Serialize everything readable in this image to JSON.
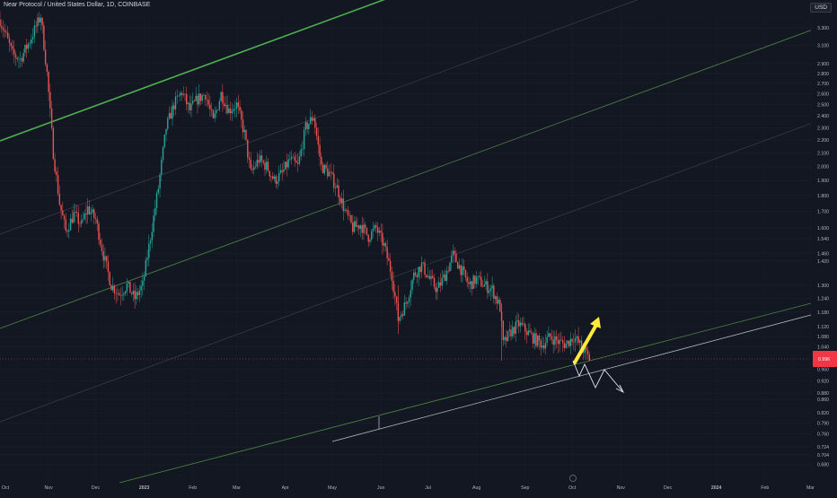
{
  "header": {
    "title": "Near Protocol / United States Dollar, 1D, COINBASE",
    "currency": "USD"
  },
  "colors": {
    "background": "#131722",
    "up": "#26a69a",
    "down": "#ef5350",
    "channel_bright": "#4caf50",
    "channel_dim": "#4a7a45",
    "trendline_white": "#b0b6c2",
    "forecast_arrow": "#ffeb3b",
    "last_price_badge": "#f23645"
  },
  "chart_data": {
    "type": "candlestick",
    "y_axis": {
      "scale": "log",
      "ticks": [
        "3.300",
        "3.100",
        "2.900",
        "2.800",
        "2.700",
        "2.600",
        "2.500",
        "2.400",
        "2.300",
        "2.200",
        "2.100",
        "2.000",
        "1.900",
        "1.800",
        "1.700",
        "1.600",
        "1.540",
        "1.460",
        "1.420",
        "1.300",
        "1.240",
        "1.180",
        "1.120",
        "1.080",
        "1.040",
        "0.960",
        "0.920",
        "0.880",
        "0.860",
        "0.820",
        "0.790",
        "0.760",
        "0.724",
        "0.704",
        "0.680"
      ],
      "last_price": "0.996"
    },
    "x_axis": {
      "ticks": [
        "Oct",
        "Nov",
        "Dec",
        "2023",
        "Feb",
        "Mar",
        "Apr",
        "May",
        "Jun",
        "Jul",
        "Aug",
        "Sep",
        "Oct",
        "Nov",
        "Dec",
        "2024",
        "Feb",
        "Mar"
      ]
    },
    "price_path": [
      [
        "2022-10-01",
        3.4
      ],
      [
        "2022-10-05",
        3.2
      ],
      [
        "2022-10-09",
        3.0
      ],
      [
        "2022-10-14",
        2.95
      ],
      [
        "2022-10-20",
        3.15
      ],
      [
        "2022-10-27",
        3.45
      ],
      [
        "2022-10-31",
        2.8
      ],
      [
        "2022-11-04",
        2.1
      ],
      [
        "2022-11-08",
        1.75
      ],
      [
        "2022-11-12",
        1.58
      ],
      [
        "2022-11-17",
        1.68
      ],
      [
        "2022-11-22",
        1.62
      ],
      [
        "2022-11-26",
        1.72
      ],
      [
        "2022-12-01",
        1.65
      ],
      [
        "2022-12-06",
        1.45
      ],
      [
        "2022-12-11",
        1.3
      ],
      [
        "2022-12-16",
        1.26
      ],
      [
        "2022-12-21",
        1.3
      ],
      [
        "2022-12-26",
        1.24
      ],
      [
        "2022-12-31",
        1.3
      ],
      [
        "2023-01-05",
        1.55
      ],
      [
        "2023-01-10",
        1.85
      ],
      [
        "2023-01-15",
        2.3
      ],
      [
        "2023-01-20",
        2.5
      ],
      [
        "2023-01-25",
        2.62
      ],
      [
        "2023-01-30",
        2.45
      ],
      [
        "2023-02-04",
        2.55
      ],
      [
        "2023-02-09",
        2.6
      ],
      [
        "2023-02-14",
        2.35
      ],
      [
        "2023-02-19",
        2.6
      ],
      [
        "2023-02-24",
        2.45
      ],
      [
        "2023-03-01",
        2.5
      ],
      [
        "2023-03-06",
        2.25
      ],
      [
        "2023-03-10",
        1.95
      ],
      [
        "2023-03-15",
        2.05
      ],
      [
        "2023-03-20",
        2.0
      ],
      [
        "2023-03-25",
        1.9
      ],
      [
        "2023-03-30",
        1.95
      ],
      [
        "2023-04-04",
        2.05
      ],
      [
        "2023-04-09",
        2.0
      ],
      [
        "2023-04-14",
        2.3
      ],
      [
        "2023-04-19",
        2.4
      ],
      [
        "2023-04-24",
        2.0
      ],
      [
        "2023-04-29",
        1.95
      ],
      [
        "2023-05-04",
        1.85
      ],
      [
        "2023-05-09",
        1.7
      ],
      [
        "2023-05-14",
        1.6
      ],
      [
        "2023-05-19",
        1.62
      ],
      [
        "2023-05-24",
        1.55
      ],
      [
        "2023-05-29",
        1.6
      ],
      [
        "2023-06-03",
        1.5
      ],
      [
        "2023-06-08",
        1.35
      ],
      [
        "2023-06-12",
        1.15
      ],
      [
        "2023-06-17",
        1.22
      ],
      [
        "2023-06-22",
        1.35
      ],
      [
        "2023-06-27",
        1.4
      ],
      [
        "2023-07-02",
        1.33
      ],
      [
        "2023-07-07",
        1.28
      ],
      [
        "2023-07-12",
        1.35
      ],
      [
        "2023-07-17",
        1.45
      ],
      [
        "2023-07-22",
        1.38
      ],
      [
        "2023-07-27",
        1.3
      ],
      [
        "2023-08-01",
        1.33
      ],
      [
        "2023-08-06",
        1.3
      ],
      [
        "2023-08-11",
        1.28
      ],
      [
        "2023-08-16",
        1.2
      ],
      [
        "2023-08-18",
        1.05
      ],
      [
        "2023-08-23",
        1.1
      ],
      [
        "2023-08-28",
        1.13
      ],
      [
        "2023-09-02",
        1.1
      ],
      [
        "2023-09-07",
        1.07
      ],
      [
        "2023-09-12",
        1.05
      ],
      [
        "2023-09-17",
        1.08
      ],
      [
        "2023-09-22",
        1.06
      ],
      [
        "2023-09-27",
        1.05
      ],
      [
        "2023-10-02",
        1.08
      ],
      [
        "2023-10-07",
        1.04
      ],
      [
        "2023-10-12",
        0.996
      ]
    ],
    "annotations": {
      "channel_lines": 7,
      "forecast_arrow": "up",
      "forecast_path": "zigzag down"
    }
  }
}
